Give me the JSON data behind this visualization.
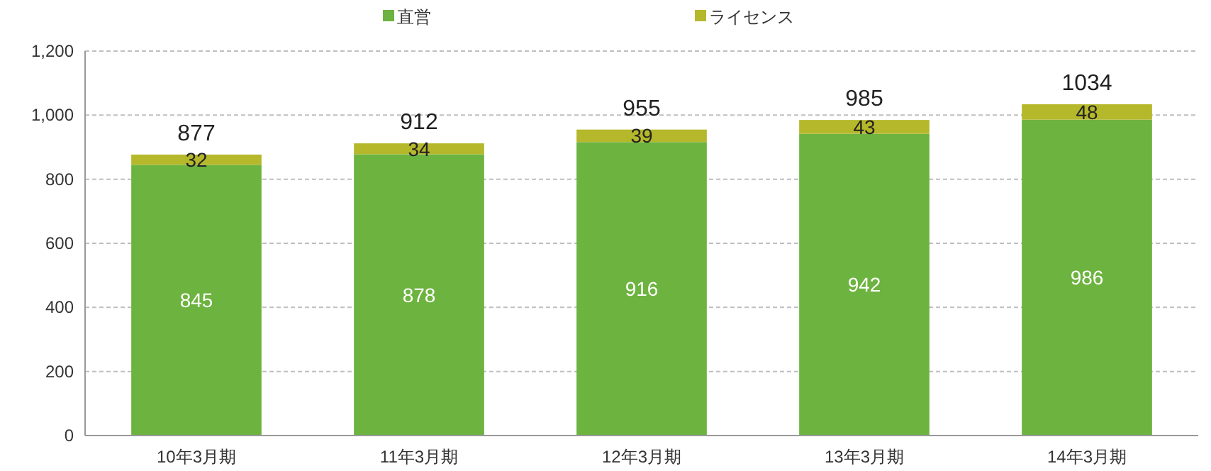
{
  "chart_data": {
    "type": "bar",
    "stacked": true,
    "categories": [
      "10年3月期",
      "11年3月期",
      "12年3月期",
      "13年3月期",
      "14年3月期"
    ],
    "series": [
      {
        "name": "直営",
        "color": "#6db33f",
        "values": [
          845,
          878,
          916,
          942,
          986
        ]
      },
      {
        "name": "ライセンス",
        "color": "#b5b82a",
        "values": [
          32,
          34,
          39,
          43,
          48
        ]
      }
    ],
    "totals": [
      "877",
      "912",
      "955",
      "985",
      "1034"
    ],
    "data_labels": true,
    "ylim": [
      0,
      1200
    ],
    "yticks": [
      0,
      200,
      400,
      600,
      800,
      {
        "value": 1000,
        "label": "1,000"
      },
      {
        "value": 1200,
        "label": "1,200"
      }
    ],
    "grid": "y",
    "legend": "top"
  }
}
